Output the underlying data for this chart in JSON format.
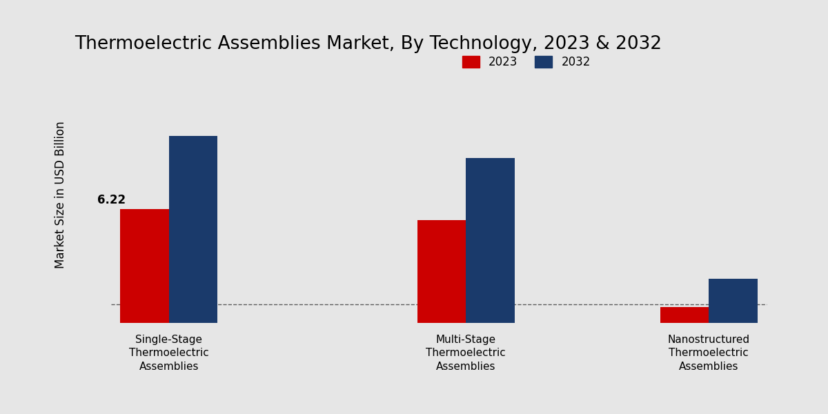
{
  "title": "Thermoelectric Assemblies Market, By Technology, 2023 & 2032",
  "ylabel": "Market Size in USD Billion",
  "categories": [
    "Single-Stage\nThermoelectric\nAssemblies",
    "Multi-Stage\nThermoelectric\nAssemblies",
    "Nanostructured\nThermoelectric\nAssemblies"
  ],
  "values_2023": [
    6.22,
    5.6,
    0.85
  ],
  "values_2032": [
    10.2,
    9.0,
    2.4
  ],
  "color_2023": "#cc0000",
  "color_2032": "#1a3a6b",
  "bar_width": 0.18,
  "annotation_2023_0": "6.22",
  "ylim": [
    0,
    14
  ],
  "hline_y": 1.0,
  "background_color": "#e6e6e6",
  "legend_labels": [
    "2023",
    "2032"
  ],
  "title_fontsize": 19,
  "ylabel_fontsize": 12,
  "tick_fontsize": 11,
  "legend_fontsize": 12
}
